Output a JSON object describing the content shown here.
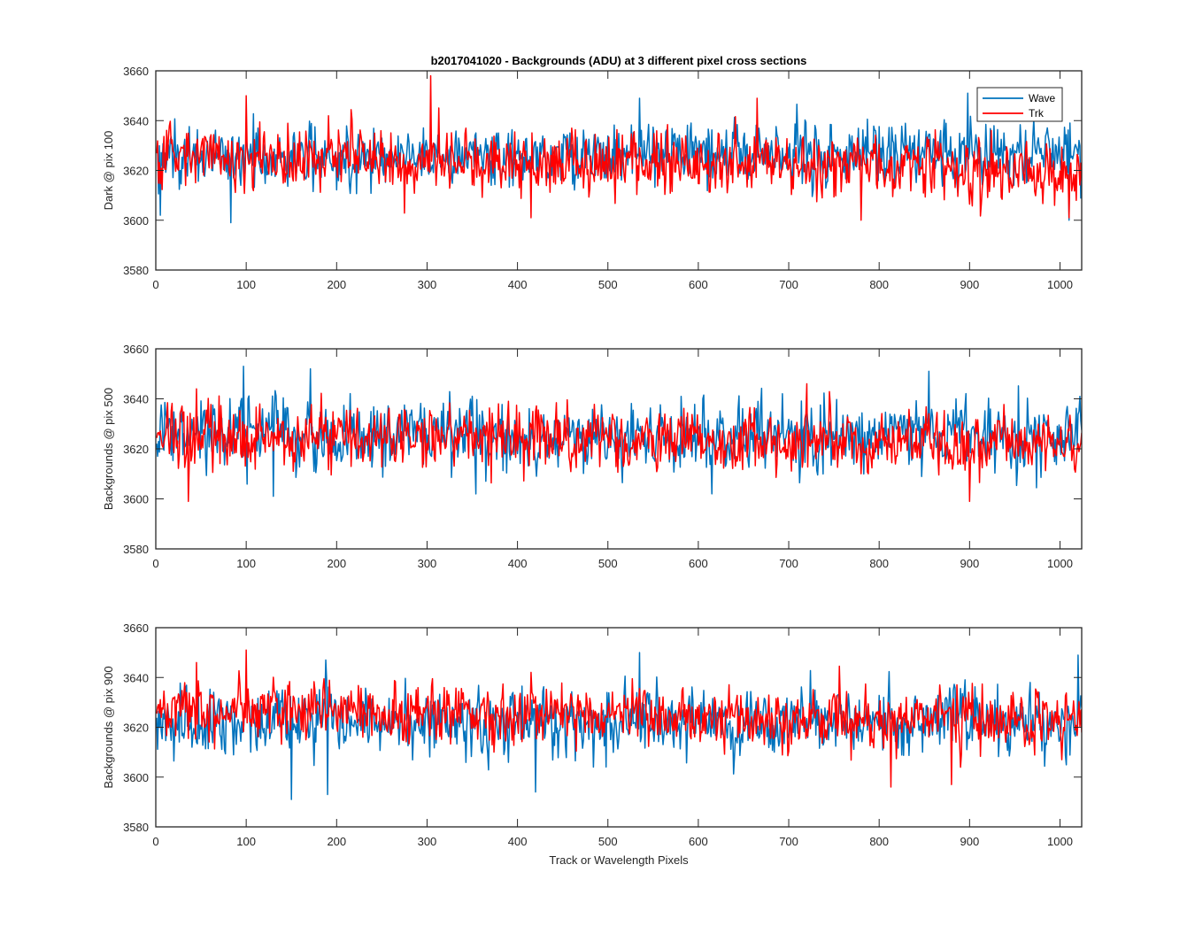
{
  "figure": {
    "title": "b2017041020 - Backgrounds (ADU) at 3 different pixel cross sections",
    "xlabel": "Track or Wavelength Pixels"
  },
  "colors": {
    "wave": "#0072BD",
    "trk": "#FF0000",
    "axis": "#262626"
  },
  "chart_data": [
    {
      "type": "line",
      "ylabel": "Dark @ pix 100",
      "xlim": [
        0,
        1024
      ],
      "ylim": [
        3580,
        3660
      ],
      "xticks": [
        0,
        100,
        200,
        300,
        400,
        500,
        600,
        700,
        800,
        900,
        1000
      ],
      "yticks": [
        3580,
        3600,
        3620,
        3640,
        3660
      ],
      "legend": {
        "entries": [
          "Wave",
          "Trk"
        ],
        "location": "top-right"
      },
      "series": [
        {
          "name": "Wave",
          "color": "#0072BD",
          "n_points": 1024,
          "x_start": 1,
          "mean": 3625,
          "std": 7,
          "trend_end_mean": 3628,
          "extremes": [
            [
              83,
              3599
            ],
            [
              5,
              3602
            ],
            [
              898,
              3651
            ],
            [
              535,
              3649
            ],
            [
              1010,
              3600
            ]
          ]
        },
        {
          "name": "Trk",
          "color": "#FF0000",
          "n_points": 1024,
          "x_start": 1,
          "mean": 3626,
          "std": 7,
          "trend_end_mean": 3620,
          "extremes": [
            [
              304,
              3658
            ],
            [
              100,
              3650
            ],
            [
              665,
              3649
            ],
            [
              415,
              3601
            ],
            [
              780,
              3600
            ],
            [
              1010,
              3601
            ]
          ]
        }
      ]
    },
    {
      "type": "line",
      "ylabel": "Backgrounds @ pix 500",
      "xlim": [
        0,
        1024
      ],
      "ylim": [
        3580,
        3660
      ],
      "xticks": [
        0,
        100,
        200,
        300,
        400,
        500,
        600,
        700,
        800,
        900,
        1000
      ],
      "yticks": [
        3580,
        3600,
        3620,
        3640,
        3660
      ],
      "series": [
        {
          "name": "Wave",
          "color": "#0072BD",
          "n_points": 1024,
          "x_start": 1,
          "mean": 3625,
          "std": 8,
          "trend_end_mean": 3625,
          "extremes": [
            [
              97,
              3653
            ],
            [
              171,
              3652
            ],
            [
              855,
              3651
            ],
            [
              130,
              3601
            ],
            [
              615,
              3602
            ]
          ]
        },
        {
          "name": "Trk",
          "color": "#FF0000",
          "n_points": 1024,
          "x_start": 1,
          "mean": 3625,
          "std": 7,
          "trend_end_mean": 3622,
          "extremes": [
            [
              36,
              3599
            ],
            [
              900,
              3599
            ],
            [
              720,
              3646
            ],
            [
              45,
              3644
            ]
          ]
        }
      ]
    },
    {
      "type": "line",
      "ylabel": "Backgrounds @ pix 900",
      "xlim": [
        0,
        1024
      ],
      "ylim": [
        3580,
        3660
      ],
      "xticks": [
        0,
        100,
        200,
        300,
        400,
        500,
        600,
        700,
        800,
        900,
        1000
      ],
      "yticks": [
        3580,
        3600,
        3620,
        3640,
        3660
      ],
      "series": [
        {
          "name": "Wave",
          "color": "#0072BD",
          "n_points": 1024,
          "x_start": 1,
          "mean": 3622,
          "std": 8,
          "trend_end_mean": 3622,
          "extremes": [
            [
              150,
              3591
            ],
            [
              190,
              3593
            ],
            [
              420,
              3594
            ],
            [
              535,
              3650
            ],
            [
              1020,
              3649
            ],
            [
              188,
              3647
            ]
          ]
        },
        {
          "name": "Trk",
          "color": "#FF0000",
          "n_points": 1024,
          "x_start": 1,
          "mean": 3627,
          "std": 7,
          "trend_end_mean": 3623,
          "extremes": [
            [
              100,
              3651
            ],
            [
              45,
              3646
            ],
            [
              813,
              3596
            ],
            [
              880,
              3597
            ]
          ]
        }
      ]
    }
  ]
}
